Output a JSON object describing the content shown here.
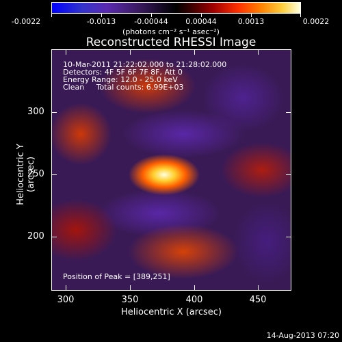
{
  "colorbar": {
    "ticks": [
      "-0.0022",
      "-0.0013",
      "-0.00044",
      "0.00044",
      "0.0013",
      "0.0022"
    ],
    "units": "(photons cm⁻² s⁻¹ asec⁻²)",
    "gradient": [
      "#0000ff",
      "#5a2ab0",
      "#000000",
      "#a00000",
      "#ff8000",
      "#ffffe0"
    ]
  },
  "title": "Reconstructed RHESSI Image",
  "info": {
    "line1": "10-Mar-2011 21:22:02.000 to 21:28:02.000",
    "line2": "Detectors: 4F 5F 6F 7F 8F, Att 0",
    "line3": "Energy Range: 12.0 - 25.0 keV",
    "line4": "Clean     Total counts: 6.99E+03"
  },
  "peak_text": "Position of Peak = [389,251]",
  "x_axis": {
    "title": "Heliocentric X (arcsec)",
    "ticks": [
      "300",
      "350",
      "400",
      "450"
    ]
  },
  "y_axis": {
    "title": "Heliocentric Y (arcsec)",
    "ticks": [
      "300",
      "250",
      "200"
    ]
  },
  "footer_date": "14-Aug-2013 07:20"
}
